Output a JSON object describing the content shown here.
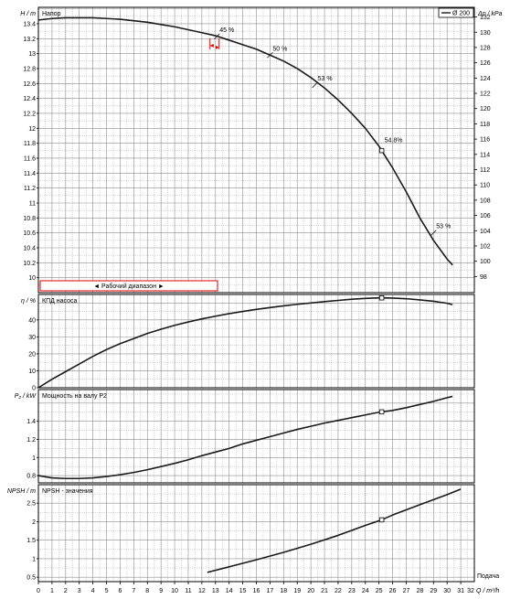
{
  "chart_data": {
    "type": "line",
    "x": {
      "label": "Q / m³/h",
      "range": [
        0,
        32
      ],
      "ticks": [
        0,
        1,
        2,
        3,
        4,
        5,
        6,
        7,
        8,
        9,
        10,
        11,
        12,
        13,
        14,
        15,
        16,
        17,
        18,
        19,
        20,
        21,
        22,
        23,
        24,
        25,
        26,
        27,
        28,
        29,
        30,
        31,
        32
      ]
    },
    "bottom_right_label": "Подача",
    "panels": [
      {
        "id": "head",
        "title": "Напор",
        "ylabel": "H / m",
        "ylim": [
          9.8,
          13.62
        ],
        "yticks": [
          10,
          10.2,
          10.4,
          10.6,
          10.8,
          11,
          11.2,
          11.4,
          11.6,
          11.8,
          12,
          12.2,
          12.4,
          12.6,
          12.8,
          13,
          13.2,
          13.4
        ],
        "y2label": "Δp / kPa",
        "y2ticks": [
          98,
          100,
          102,
          104,
          106,
          108,
          110,
          112,
          114,
          116,
          118,
          120,
          122,
          124,
          126,
          128,
          130,
          132
        ],
        "legend": "Ø 200",
        "series": [
          {
            "name": "Ø 200",
            "x": [
              0,
              1,
              2,
              3,
              4,
              5,
              6,
              7,
              8,
              9,
              10,
              11,
              12,
              13,
              14,
              15,
              16,
              17,
              18,
              19,
              20,
              21,
              22,
              23,
              24,
              25,
              26,
              27,
              28,
              29,
              30,
              30.4
            ],
            "y": [
              13.45,
              13.47,
              13.48,
              13.48,
              13.48,
              13.47,
              13.46,
              13.44,
              13.42,
              13.39,
              13.36,
              13.32,
              13.28,
              13.24,
              13.18,
              13.12,
              13.06,
              12.98,
              12.9,
              12.8,
              12.68,
              12.54,
              12.38,
              12.2,
              12,
              11.76,
              11.47,
              11.15,
              10.8,
              10.5,
              10.25,
              10.17
            ]
          }
        ],
        "efficiency_marks": [
          {
            "x": 13.1,
            "y": 13.23,
            "label": "45 %"
          },
          {
            "x": 17.0,
            "y": 12.98,
            "label": "50 %"
          },
          {
            "x": 20.3,
            "y": 12.58,
            "label": "53 %"
          },
          {
            "x": 25.2,
            "y": 11.75,
            "label": "54.8%"
          },
          {
            "x": 29.0,
            "y": 10.6,
            "label": "53 %"
          }
        ],
        "operating_range_label": "◄ Рабочий диапазон ►"
      },
      {
        "id": "eta",
        "title": "КПД насоса",
        "ylabel": "η / %",
        "ylim": [
          0,
          55
        ],
        "yticks": [
          0,
          10,
          20,
          30,
          40
        ],
        "series": [
          {
            "name": "КПД насоса",
            "x": [
              0,
              1,
              2,
              3,
              4,
              5,
              6,
              7,
              8,
              9,
              10,
              11,
              12,
              13,
              14,
              15,
              16,
              17,
              18,
              19,
              20,
              21,
              22,
              23,
              24,
              25,
              26,
              27,
              28,
              29,
              30,
              30.4
            ],
            "y": [
              0,
              5,
              9.5,
              14,
              18.5,
              22.5,
              26,
              29,
              32,
              34.5,
              36.8,
              38.8,
              40.6,
              42.2,
              43.7,
              45,
              46.2,
              47.3,
              48.3,
              49.2,
              50,
              50.8,
              51.5,
              52.2,
              52.7,
              53,
              52.9,
              52.5,
              51.8,
              51,
              49.8,
              49
            ]
          }
        ]
      },
      {
        "id": "p2",
        "title": "Мощность на валу P2",
        "ylabel": "P₂ / kW",
        "ylim": [
          0.72,
          1.75
        ],
        "yticks": [
          0.8,
          1,
          1.2,
          1.4
        ],
        "series": [
          {
            "name": "Мощность на валу P2",
            "x": [
              0,
              1,
              2,
              3,
              4,
              5,
              6,
              7,
              8,
              9,
              10,
              11,
              12,
              13,
              14,
              15,
              16,
              17,
              18,
              19,
              20,
              21,
              22,
              23,
              24,
              25,
              26,
              27,
              28,
              29,
              30,
              30.4
            ],
            "y": [
              0.8,
              0.775,
              0.768,
              0.768,
              0.775,
              0.79,
              0.81,
              0.835,
              0.865,
              0.9,
              0.935,
              0.975,
              1.02,
              1.06,
              1.1,
              1.15,
              1.19,
              1.23,
              1.27,
              1.31,
              1.345,
              1.38,
              1.41,
              1.44,
              1.47,
              1.5,
              1.52,
              1.55,
              1.585,
              1.62,
              1.66,
              1.675
            ]
          }
        ]
      },
      {
        "id": "npsh",
        "title": "NPSH - значения",
        "ylabel": "NPSH / m",
        "ylim": [
          0.38,
          3.0
        ],
        "yticks": [
          0.5,
          1,
          1.5,
          2,
          2.5
        ],
        "series": [
          {
            "name": "NPSH - значения",
            "x": [
              12.4,
              14,
              16,
              18,
              20,
              22,
              24,
              25.2,
              26,
              28,
              30,
              31
            ],
            "y": [
              0.63,
              0.78,
              0.97,
              1.17,
              1.39,
              1.63,
              1.9,
              2.05,
              2.18,
              2.46,
              2.73,
              2.88
            ]
          }
        ]
      }
    ],
    "duty_point_x": 25.2
  },
  "colors": {
    "curve": "#1a1a1a",
    "grid": "#8c8c8c",
    "frame": "#000000",
    "range": "#e00000"
  }
}
